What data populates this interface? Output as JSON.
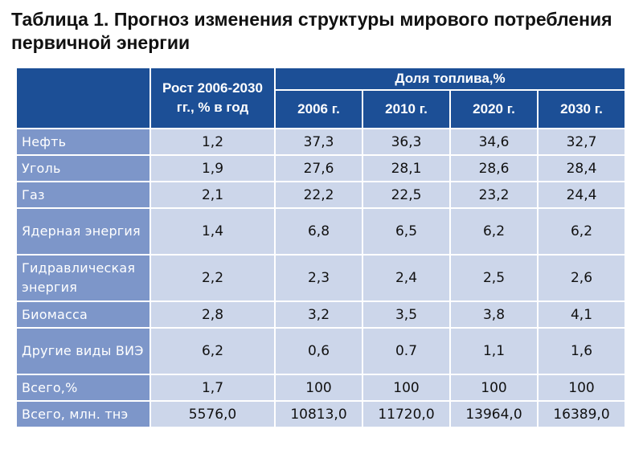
{
  "title": "Таблица 1. Прогноз изменения структуры мирового потребления первичной энергии",
  "table": {
    "growth_header": "Рост 2006-2030 гг., % в год",
    "share_header": "Доля топлива,%",
    "years": [
      "2006 г.",
      "2010 г.",
      "2020 г.",
      "2030 г."
    ],
    "rows": [
      {
        "label": "Нефть",
        "growth": "1,2",
        "values": [
          "37,3",
          "36,3",
          "34,6",
          "32,7"
        ]
      },
      {
        "label": "Уголь",
        "growth": "1,9",
        "values": [
          "27,6",
          "28,1",
          "28,6",
          "28,4"
        ]
      },
      {
        "label": "Газ",
        "growth": "2,1",
        "values": [
          "22,2",
          "22,5",
          "23,2",
          "24,4"
        ]
      },
      {
        "label": "Ядерная энергия",
        "growth": "1,4",
        "values": [
          "6,8",
          "6,5",
          "6,2",
          "6,2"
        ]
      },
      {
        "label": "Гидравлическая энергия",
        "growth": "2,2",
        "values": [
          "2,3",
          "2,4",
          "2,5",
          "2,6"
        ]
      },
      {
        "label": "Биомасса",
        "growth": "2,8",
        "values": [
          "3,2",
          "3,5",
          "3,8",
          "4,1"
        ]
      },
      {
        "label": "Другие виды ВИЭ",
        "growth": "6,2",
        "values": [
          "0,6",
          "0.7",
          "1,1",
          "1,6"
        ]
      },
      {
        "label": "Всего,%",
        "growth": "1,7",
        "values": [
          "100",
          "100",
          "100",
          "100"
        ]
      },
      {
        "label": "Всего, млн. тнэ",
        "growth": "5576,0",
        "values": [
          "10813,0",
          "11720,0",
          "13964,0",
          "16389,0"
        ]
      }
    ]
  },
  "colors": {
    "header": "#1c4f96",
    "label_cell": "#7d96c9",
    "value_cell": "#ccd6ea"
  }
}
